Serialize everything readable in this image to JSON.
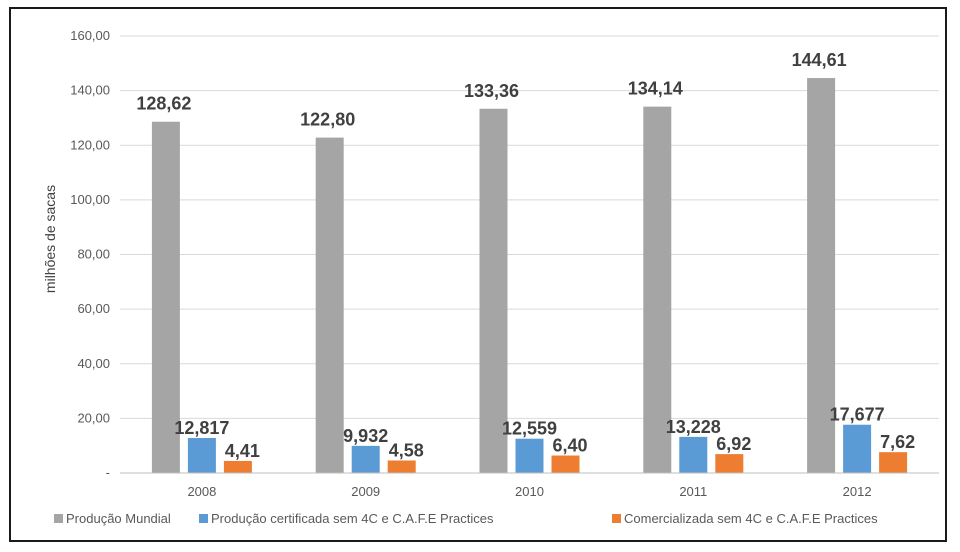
{
  "chart_data": {
    "type": "bar",
    "title": "",
    "xlabel": "",
    "ylabel": "milhões de sacas",
    "categories": [
      "2008",
      "2009",
      "2010",
      "2011",
      "2012"
    ],
    "ylim": [
      0,
      160
    ],
    "yticks": [
      0,
      20,
      40,
      60,
      80,
      100,
      120,
      140,
      160
    ],
    "ytick_labels": [
      "-",
      "20,00",
      "40,00",
      "60,00",
      "80,00",
      "100,00",
      "120,00",
      "140,00",
      "160,00"
    ],
    "grid": true,
    "legend_position": "bottom",
    "series": [
      {
        "name": "Produção Mundial",
        "color": "#a5a5a5",
        "values": [
          128.62,
          122.8,
          133.36,
          134.14,
          144.61
        ],
        "labels": [
          "128,62",
          "122,80",
          "133,36",
          "134,14",
          "144,61"
        ]
      },
      {
        "name": "Produção certificada sem 4C e C.A.F.E Practices",
        "color": "#5b9bd5",
        "values": [
          12.817,
          9.932,
          12.559,
          13.228,
          17.677
        ],
        "labels": [
          "12,817",
          "9,932",
          "12,559",
          "13,228",
          "17,677"
        ]
      },
      {
        "name": "Comercializada sem 4C e C.A.F.E Practices",
        "color": "#ed7d31",
        "values": [
          4.41,
          4.58,
          6.4,
          6.92,
          7.62
        ],
        "labels": [
          "4,41",
          "4,58",
          "6,40",
          "6,92",
          "7,62"
        ]
      }
    ]
  }
}
